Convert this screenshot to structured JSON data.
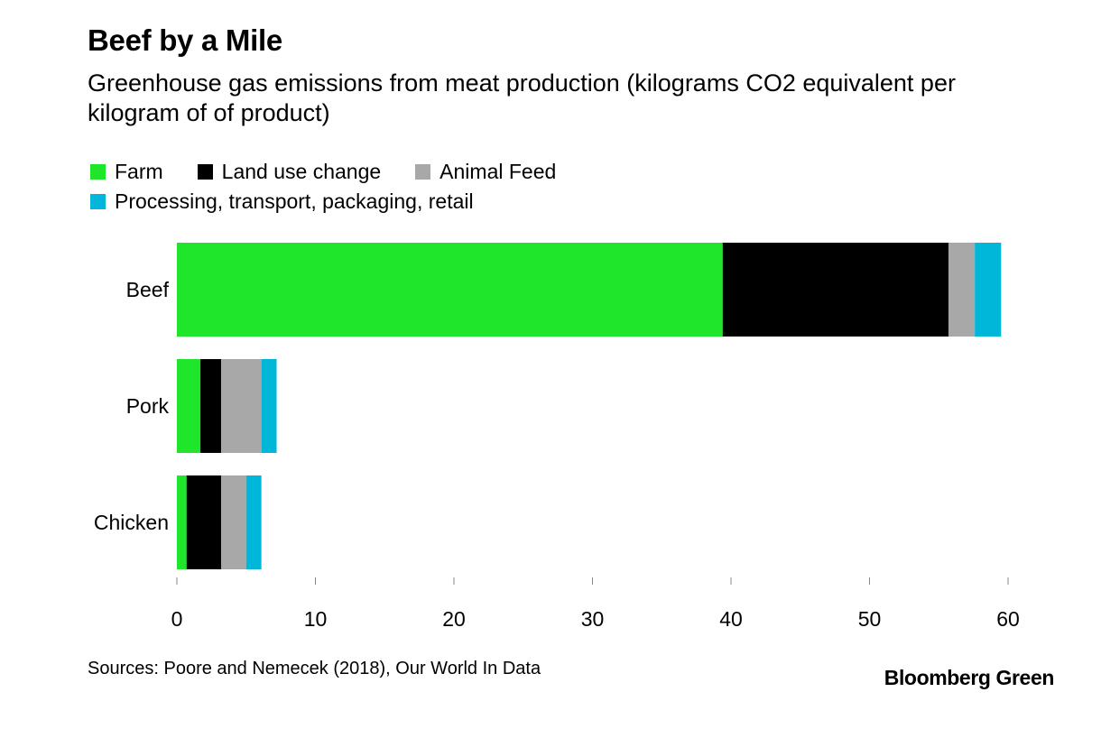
{
  "chart_data": {
    "type": "bar",
    "orientation": "horizontal",
    "stacked": true,
    "title": "Beef by a Mile",
    "subtitle": "Greenhouse gas emissions from meat production (kilograms CO2 equivalent per kilogram of of product)",
    "categories": [
      "Beef",
      "Pork",
      "Chicken"
    ],
    "series": [
      {
        "name": "Farm",
        "color": "#1FE62A",
        "values": [
          39.4,
          1.7,
          0.7
        ]
      },
      {
        "name": "Land use change",
        "color": "#000000",
        "values": [
          16.3,
          1.5,
          2.5
        ]
      },
      {
        "name": "Animal Feed",
        "color": "#A8A8A8",
        "values": [
          1.9,
          2.9,
          1.8
        ]
      },
      {
        "name": "Processing, transport, packaging, retail",
        "color": "#00B6D9",
        "values": [
          1.9,
          1.1,
          1.1
        ]
      }
    ],
    "xlim": [
      0,
      60
    ],
    "x_ticks": [
      0,
      10,
      20,
      30,
      40,
      50,
      60
    ],
    "grid": false,
    "legend_position": "top-left"
  },
  "footer": {
    "source": "Sources: Poore and Nemecek (2018), Our World In Data",
    "brand": "Bloomberg Green"
  }
}
